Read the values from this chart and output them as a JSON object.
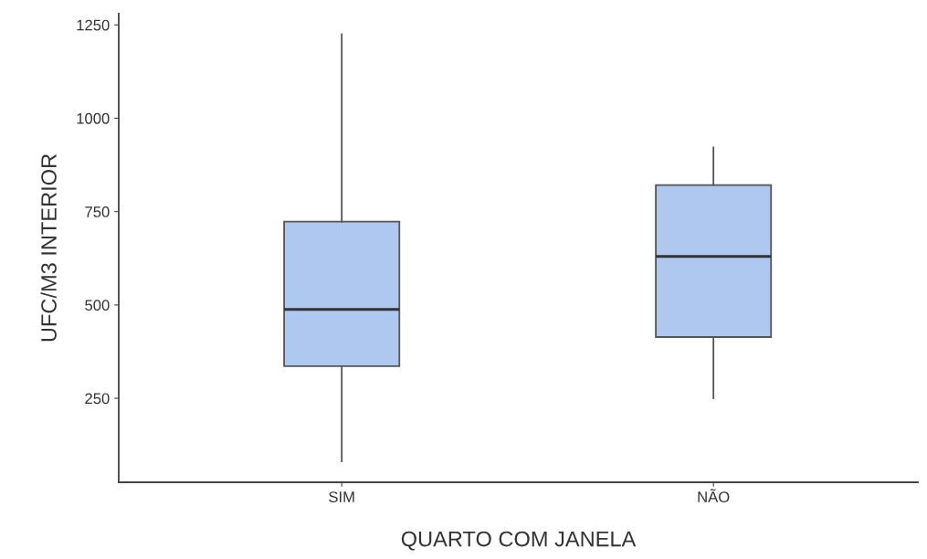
{
  "chart_data": {
    "type": "box",
    "xlabel": "QUARTO COM JANELA",
    "ylabel": "UFC/M3 INTERIOR",
    "categories": [
      "SIM",
      "NÃO"
    ],
    "color": "#aec8ef",
    "boxes": [
      {
        "low": 81,
        "q1": 336,
        "median": 488,
        "q3": 723,
        "high": 1225
      },
      {
        "low": 250,
        "q1": 414,
        "median": 630,
        "q3": 821,
        "high": 922
      }
    ],
    "ylim": [
      25,
      1280
    ],
    "yticks": [
      250,
      500,
      750,
      1000,
      1250
    ],
    "grid": false
  }
}
